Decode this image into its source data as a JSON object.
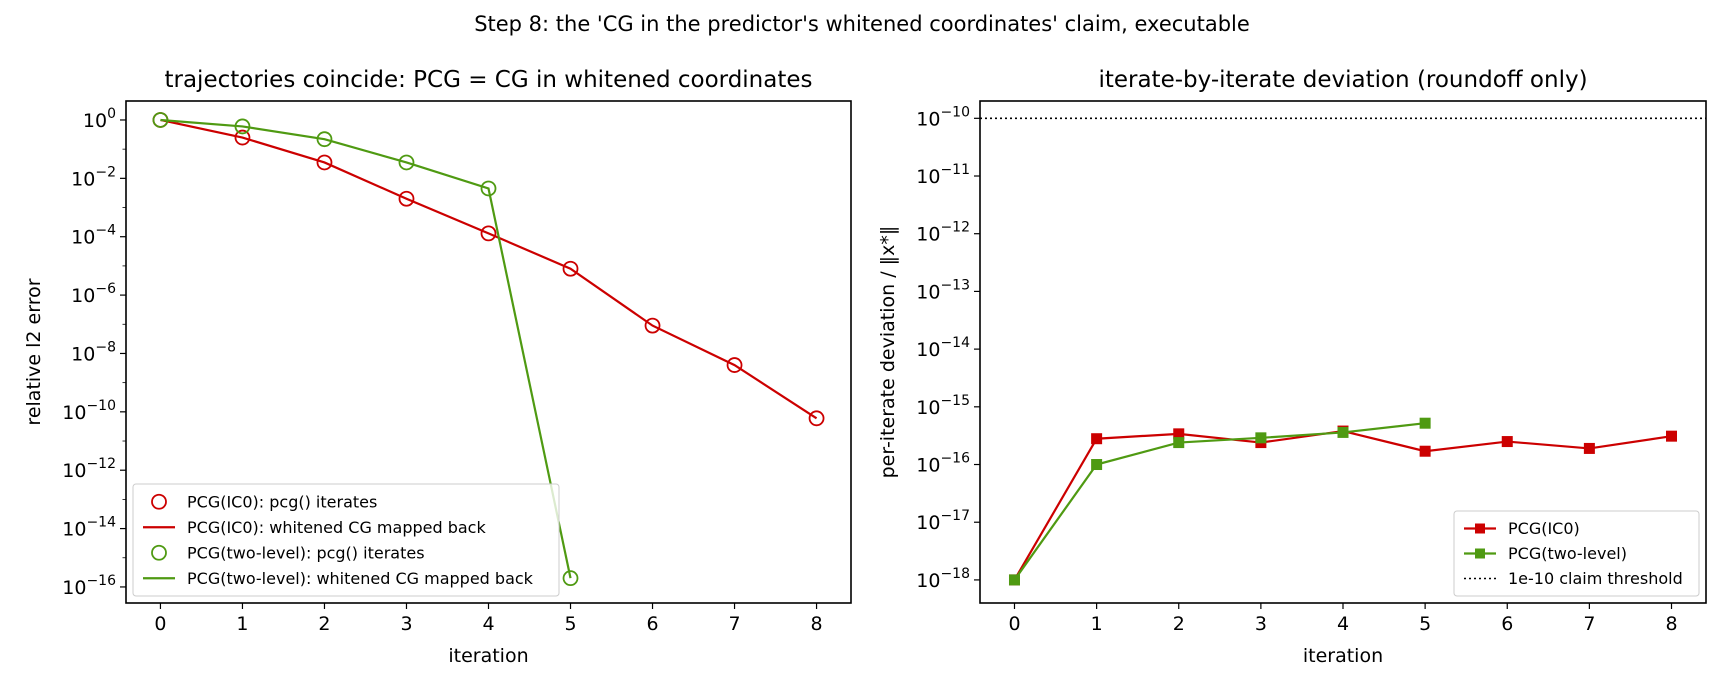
{
  "suptitle": "Step 8: the 'CG in the predictor's whitened coordinates' claim, executable",
  "colors": {
    "ic0": "#cc0000",
    "two_level": "#4f9a12",
    "threshold": "#000000"
  },
  "chart_data": [
    {
      "type": "line",
      "title": "trajectories coincide: PCG = CG in whitened coordinates",
      "xlabel": "iteration",
      "ylabel": "relative l2 error",
      "yscale": "log",
      "xlim": [
        -0.42,
        8.42
      ],
      "ylim_exp": [
        -16.55,
        0.65
      ],
      "x_ticks": [
        0,
        1,
        2,
        3,
        4,
        5,
        6,
        7,
        8
      ],
      "y_tick_exponents": [
        0,
        -2,
        -4,
        -6,
        -8,
        -10,
        -12,
        -14,
        -16
      ],
      "y_tick_base": "10",
      "legend_position": "lower-left",
      "series": [
        {
          "name": "PCG(IC0): pcg() iterates",
          "style": "markers",
          "color_key": "ic0",
          "x": [
            0,
            1,
            2,
            3,
            4,
            5,
            6,
            7,
            8
          ],
          "y": [
            1.0,
            0.25,
            0.035,
            0.002,
            0.00013,
            8e-06,
            9e-08,
            4e-09,
            6e-11
          ]
        },
        {
          "name": "PCG(IC0): whitened CG mapped back",
          "style": "line",
          "color_key": "ic0",
          "x": [
            0,
            1,
            2,
            3,
            4,
            5,
            6,
            7,
            8
          ],
          "y": [
            1.0,
            0.25,
            0.035,
            0.002,
            0.00013,
            8e-06,
            9e-08,
            4e-09,
            6e-11
          ]
        },
        {
          "name": "PCG(two-level): pcg() iterates",
          "style": "markers",
          "color_key": "two_level",
          "x": [
            0,
            1,
            2,
            3,
            4,
            5
          ],
          "y": [
            1.0,
            0.6,
            0.22,
            0.035,
            0.0045,
            2e-16
          ]
        },
        {
          "name": "PCG(two-level): whitened CG mapped back",
          "style": "line",
          "color_key": "two_level",
          "x": [
            0,
            1,
            2,
            3,
            4,
            5
          ],
          "y": [
            1.0,
            0.6,
            0.22,
            0.035,
            0.0045,
            2e-16
          ]
        }
      ]
    },
    {
      "type": "line",
      "title": "iterate-by-iterate deviation (roundoff only)",
      "xlabel": "iteration",
      "ylabel": "per-iterate deviation / ‖x*‖",
      "yscale": "log",
      "xlim": [
        -0.42,
        8.42
      ],
      "ylim_exp": [
        -18.4,
        -9.7
      ],
      "x_ticks": [
        0,
        1,
        2,
        3,
        4,
        5,
        6,
        7,
        8
      ],
      "y_tick_exponents": [
        -10,
        -11,
        -12,
        -13,
        -14,
        -15,
        -16,
        -17,
        -18
      ],
      "y_tick_base": "10",
      "legend_position": "lower-right",
      "series": [
        {
          "name": "PCG(IC0)",
          "style": "line+square",
          "color_key": "ic0",
          "x": [
            0,
            1,
            2,
            3,
            4,
            5,
            6,
            7,
            8
          ],
          "y": [
            1e-18,
            2.8e-16,
            3.4e-16,
            2.4e-16,
            3.8e-16,
            1.7e-16,
            2.5e-16,
            1.9e-16,
            3.1e-16
          ]
        },
        {
          "name": "PCG(two-level)",
          "style": "line+square",
          "color_key": "two_level",
          "x": [
            0,
            1,
            2,
            3,
            4,
            5
          ],
          "y": [
            1e-18,
            1e-16,
            2.4e-16,
            2.9e-16,
            3.6e-16,
            5.2e-16
          ]
        },
        {
          "name": "1e-10 claim threshold",
          "style": "hline-dotted",
          "color_key": "threshold",
          "y": 1e-10
        }
      ]
    }
  ]
}
